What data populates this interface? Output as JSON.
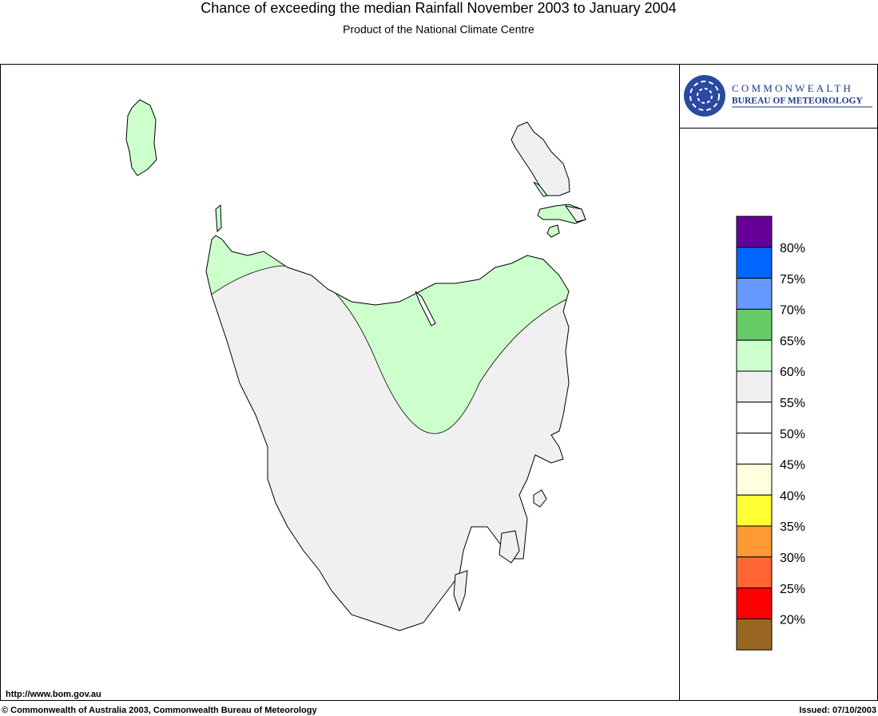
{
  "header": {
    "title": "Chance of exceeding the median Rainfall November 2003 to January 2004",
    "subtitle": "Product of the National Climate Centre"
  },
  "logo": {
    "line1": "COMMONWEALTH",
    "line2": "BUREAU OF METEOROLOGY"
  },
  "legend": {
    "colors": [
      "#660099",
      "#0066ff",
      "#6699ff",
      "#66cc66",
      "#ccffcc",
      "#f0f0f0",
      "#ffffff",
      "#ffffff",
      "#ffffe0",
      "#ffff33",
      "#ff9933",
      "#ff6633",
      "#ff0000",
      "#996622"
    ],
    "labels": [
      "80%",
      "75%",
      "70%",
      "65%",
      "60%",
      "55%",
      "50%",
      "45%",
      "40%",
      "35%",
      "30%",
      "25%",
      "20%"
    ]
  },
  "footer": {
    "url": "http://www.bom.gov.au",
    "copyright": "© Commonwealth of Australia 2003, Commonwealth Bureau of Meteorology",
    "issued": "Issued: 07/10/2003"
  }
}
